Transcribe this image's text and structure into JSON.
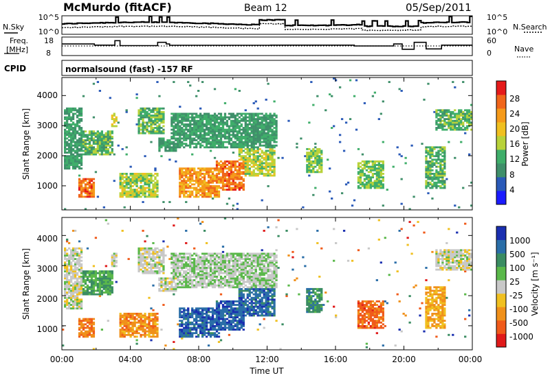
{
  "header": {
    "station": "McMurdo (fitACF)",
    "beam": "Beam 12",
    "date": "05/Sep/2011"
  },
  "top_panels": {
    "nsky_label": "N.Sky",
    "nsearch_label": "N.Search",
    "noise_ticks_left": [
      "10^5",
      "10^0"
    ],
    "noise_ticks_right": [
      "10^5",
      "10^0"
    ],
    "freq_label_1": "Freq.",
    "freq_label_2": "[MHz]",
    "freq_ticks": [
      "18",
      "8"
    ],
    "nave_label": "Nave",
    "nave_ticks": [
      "60",
      "0"
    ],
    "cpid_label": "CPID",
    "cpid_value": "normalsound (fast) -157 RF"
  },
  "chart_data": [
    {
      "type": "heatmap",
      "name": "power",
      "ylabel": "Slant Range [km]",
      "xlabel": "",
      "yticks": [
        "1000",
        "2000",
        "3000",
        "4000"
      ],
      "ylim": [
        200,
        4600
      ],
      "xlim": [
        0,
        24
      ],
      "colorbar": {
        "label": "Power [dB]",
        "ticks": [
          "4",
          "8",
          "12",
          "16",
          "20",
          "24",
          "28"
        ],
        "colors": [
          "#1b1bff",
          "#2a5ab8",
          "#3f8f6a",
          "#3fae6a",
          "#b8d23a",
          "#f0c020",
          "#f59a1a",
          "#f0651a",
          "#e51a1a"
        ]
      }
    },
    {
      "type": "heatmap",
      "name": "velocity",
      "ylabel": "Slant Range [km]",
      "xlabel": "Time UT",
      "yticks": [
        "1000",
        "2000",
        "3000",
        "4000"
      ],
      "xticks": [
        "00:00",
        "04:00",
        "08:00",
        "12:00",
        "16:00",
        "20:00",
        "00:00"
      ],
      "ylim": [
        200,
        4600
      ],
      "xlim": [
        0,
        24
      ],
      "colorbar": {
        "label": "Velocity [m s⁻¹]",
        "ticks": [
          "1000",
          "500",
          "100",
          "25",
          "-25",
          "-100",
          "-500",
          "-1000"
        ],
        "colors": [
          "#1a2fb0",
          "#2a6ea8",
          "#3a8c62",
          "#5ab84a",
          "#c8c8c8",
          "#f0c020",
          "#f0901a",
          "#f05a1a",
          "#e01a1a"
        ]
      }
    }
  ]
}
